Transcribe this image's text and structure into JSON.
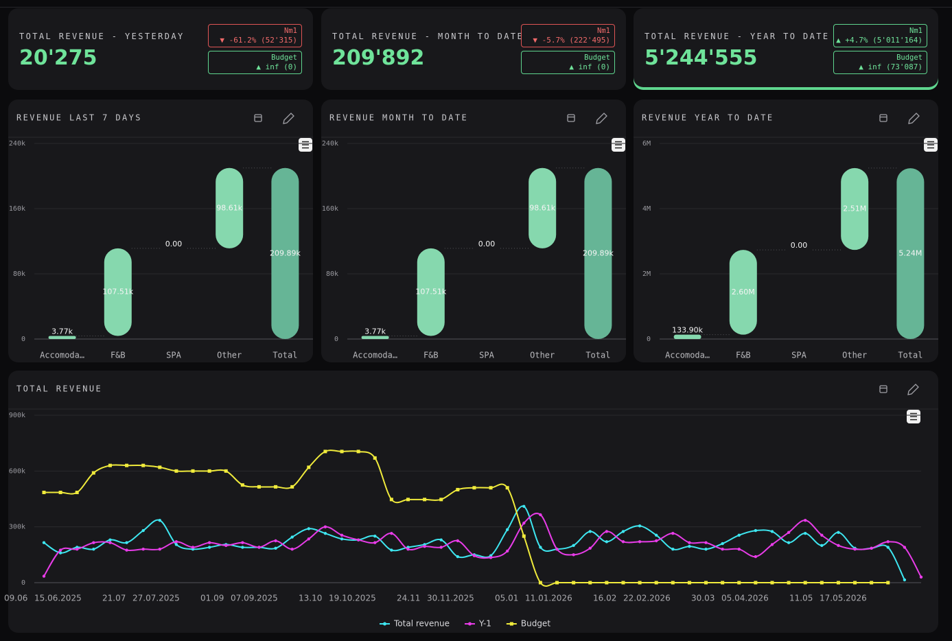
{
  "kpi_cards": [
    {
      "title": "TOTAL REVENUE - YESTERDAY",
      "value": "20'275",
      "nm1_label": "Nm1",
      "nm1_delta": "▼ -61.2% (52'315)",
      "budget_label": "Budget",
      "budget_delta": "▲ inf (0)"
    },
    {
      "title": "TOTAL REVENUE - MONTH TO DATE",
      "value": "209'892",
      "nm1_label": "Nm1",
      "nm1_delta": "▼ -5.7% (222'495)",
      "budget_label": "Budget",
      "budget_delta": "▲ inf (0)"
    },
    {
      "title": "TOTAL REVENUE - YEAR TO DATE",
      "value": "5'244'555",
      "nm1_label": "Nm1",
      "nm1_delta": "▲ +4.7% (5'011'164)",
      "budget_label": "Budget",
      "budget_delta": "▲ inf (73'087)"
    }
  ],
  "chart_data": [
    {
      "type": "waterfall",
      "title": "REVENUE LAST 7 DAYS",
      "categories": [
        "Accomoda…",
        "F&B",
        "SPA",
        "Other",
        "Total"
      ],
      "values": [
        3770,
        107510,
        0,
        98610,
        209890
      ],
      "value_labels": [
        "3.77k",
        "107.51k",
        "0.00",
        "98.61k",
        "209.89k"
      ],
      "ylim": [
        0,
        240000
      ],
      "yticks": [
        0,
        {
          "value": 80000,
          "label": "80k"
        },
        {
          "value": 160000,
          "label": "160k"
        },
        {
          "value": 240000,
          "label": "240k"
        }
      ],
      "color": "#86d8ae",
      "total_color": "#66b596",
      "grid": true
    },
    {
      "type": "waterfall",
      "title": "REVENUE MONTH TO DATE",
      "categories": [
        "Accomoda…",
        "F&B",
        "SPA",
        "Other",
        "Total"
      ],
      "values": [
        3770,
        107510,
        0,
        98610,
        209890
      ],
      "value_labels": [
        "3.77k",
        "107.51k",
        "0.00",
        "98.61k",
        "209.89k"
      ],
      "ylim": [
        0,
        240000
      ],
      "yticks": [
        0,
        {
          "value": 80000,
          "label": "80k"
        },
        {
          "value": 160000,
          "label": "160k"
        },
        {
          "value": 240000,
          "label": "240k"
        }
      ],
      "color": "#86d8ae",
      "total_color": "#66b596",
      "grid": true
    },
    {
      "type": "waterfall",
      "title": "REVENUE YEAR TO DATE",
      "categories": [
        "Accomoda…",
        "F&B",
        "SPA",
        "Other",
        "Total"
      ],
      "values": [
        133900,
        2600000,
        0,
        2510000,
        5240000
      ],
      "value_labels": [
        "133.90k",
        "2.60M",
        "0.00",
        "2.51M",
        "5.24M"
      ],
      "ylim": [
        0,
        6000000
      ],
      "yticks": [
        0,
        {
          "value": 2000000,
          "label": "2M"
        },
        {
          "value": 4000000,
          "label": "4M"
        },
        {
          "value": 6000000,
          "label": "6M"
        }
      ],
      "color": "#86d8ae",
      "total_color": "#66b596",
      "grid": true
    },
    {
      "type": "line",
      "title": "TOTAL REVENUE",
      "x_labels": [
        "09.06",
        "15.06.2025",
        "21.07",
        "27.07.2025",
        "01.09",
        "07.09.2025",
        "13.10",
        "19.10.2025",
        "24.11",
        "30.11.2025",
        "05.01",
        "11.01.2026",
        "16.02",
        "22.02.2026",
        "30.03",
        "05.04.2026",
        "11.05",
        "17.05.2026"
      ],
      "ylim": [
        0,
        900000
      ],
      "yticks": [
        0,
        {
          "value": 300000,
          "label": "300k"
        },
        {
          "value": 600000,
          "label": "600k"
        },
        {
          "value": 900000,
          "label": "900k"
        }
      ],
      "grid": true,
      "series": [
        {
          "name": "Total revenue",
          "color": "#3ee6f0",
          "marker": "circle",
          "values": [
            215000,
            160000,
            190000,
            180000,
            230000,
            215000,
            280000,
            335000,
            205000,
            180000,
            190000,
            205000,
            190000,
            190000,
            185000,
            245000,
            290000,
            265000,
            235000,
            230000,
            250000,
            175000,
            190000,
            205000,
            230000,
            140000,
            150000,
            145000,
            285000,
            410000,
            190000,
            180000,
            200000,
            275000,
            220000,
            275000,
            305000,
            255000,
            180000,
            195000,
            180000,
            210000,
            255000,
            280000,
            275000,
            215000,
            265000,
            200000,
            270000,
            185000,
            185000,
            190000,
            15000,
            null
          ]
        },
        {
          "name": "Y-1",
          "color": "#e83ce8",
          "marker": "circle",
          "values": [
            35000,
            175000,
            180000,
            215000,
            215000,
            175000,
            180000,
            180000,
            220000,
            190000,
            215000,
            200000,
            215000,
            190000,
            225000,
            180000,
            235000,
            300000,
            255000,
            230000,
            215000,
            265000,
            180000,
            195000,
            190000,
            225000,
            145000,
            135000,
            170000,
            320000,
            365000,
            180000,
            150000,
            185000,
            275000,
            220000,
            220000,
            225000,
            265000,
            215000,
            215000,
            180000,
            180000,
            140000,
            205000,
            270000,
            335000,
            255000,
            200000,
            180000,
            185000,
            220000,
            190000,
            30000
          ]
        },
        {
          "name": "Budget",
          "color": "#f0eb3c",
          "marker": "square",
          "values": [
            485000,
            485000,
            485000,
            590000,
            630000,
            630000,
            630000,
            620000,
            600000,
            600000,
            600000,
            600000,
            525000,
            515000,
            515000,
            515000,
            620000,
            705000,
            705000,
            705000,
            670000,
            447000,
            447000,
            447000,
            447000,
            500000,
            510000,
            510000,
            510000,
            250000,
            0,
            0,
            0,
            0,
            0,
            0,
            0,
            0,
            0,
            0,
            0,
            0,
            0,
            0,
            0,
            0,
            0,
            0,
            0,
            0,
            0,
            0,
            null,
            null
          ]
        }
      ]
    }
  ]
}
